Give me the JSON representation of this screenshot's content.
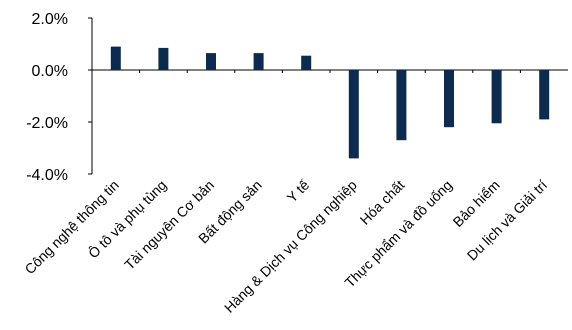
{
  "chart_data": {
    "type": "bar",
    "categories": [
      "Công nghệ thông tin",
      "Ô tô và phụ tùng",
      "Tài nguyên Cơ bản",
      "Bất động sản",
      "Y tế",
      "Hàng & Dịch vụ Công nghiệp",
      "Hóa chất",
      "Thực phẩm và đồ uống",
      "Bảo hiểm",
      "Du lịch và Giải trí"
    ],
    "values": [
      0.9,
      0.85,
      0.65,
      0.65,
      0.55,
      -3.4,
      -2.7,
      -2.2,
      -2.05,
      -1.9
    ],
    "ylim": [
      -4,
      2
    ],
    "yticks": [
      "2.0%",
      "0.0%",
      "-2.0%",
      "-4.0%"
    ],
    "ytick_values": [
      2,
      0,
      -2,
      -4
    ],
    "bar_color": "#0d2b4e",
    "grid": false,
    "legend": "none"
  }
}
